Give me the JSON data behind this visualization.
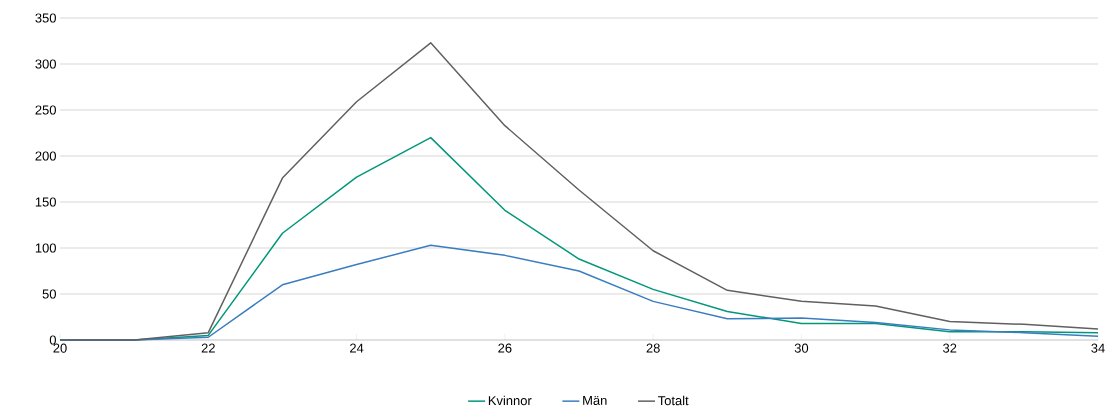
{
  "chart_data": {
    "type": "line",
    "x": [
      20,
      21,
      22,
      23,
      24,
      25,
      26,
      27,
      28,
      29,
      30,
      31,
      32,
      33,
      34
    ],
    "series": [
      {
        "name": "Kvinnor",
        "color": "#00977a",
        "values": [
          0,
          0,
          5,
          116,
          177,
          220,
          141,
          88,
          55,
          31,
          18,
          18,
          9,
          9,
          8
        ]
      },
      {
        "name": "Män",
        "color": "#3a7dc0",
        "values": [
          0,
          0,
          3,
          60,
          82,
          103,
          92,
          75,
          42,
          23,
          24,
          19,
          11,
          8,
          4
        ]
      },
      {
        "name": "Totalt",
        "color": "#606060",
        "values": [
          0,
          0,
          8,
          176,
          259,
          323,
          233,
          163,
          97,
          54,
          42,
          37,
          20,
          17,
          12
        ]
      }
    ],
    "xlim": [
      20,
      34
    ],
    "xticks": [
      20,
      22,
      24,
      26,
      28,
      30,
      32,
      34
    ],
    "ylim": [
      0,
      350
    ],
    "yticks": [
      0,
      50,
      100,
      150,
      200,
      250,
      300,
      350
    ],
    "grid": "y",
    "legend": "bottom",
    "marker": "none",
    "line_style": "solid"
  }
}
